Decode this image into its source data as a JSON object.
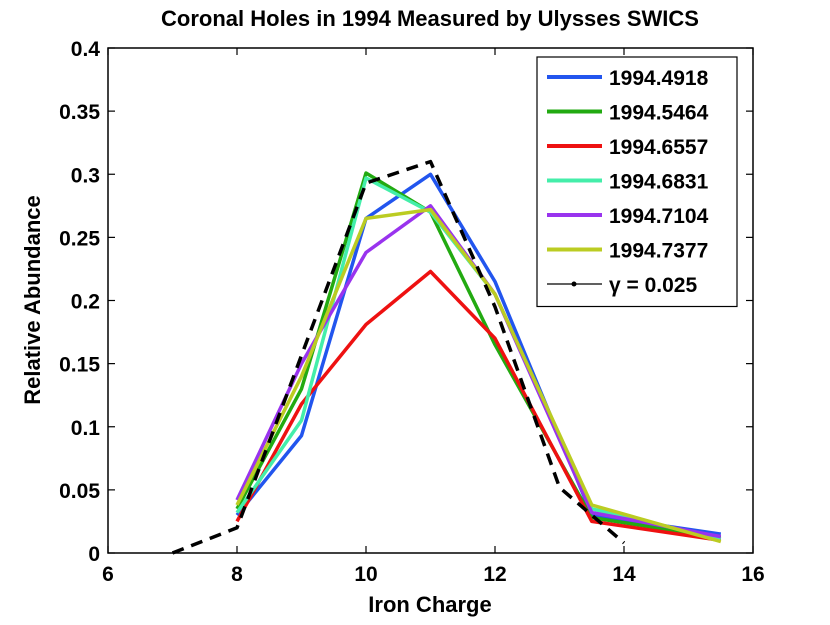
{
  "chart_data": {
    "type": "line",
    "title": "Coronal Holes in 1994 Measured by Ulysses SWICS",
    "xlabel": "Iron Charge",
    "ylabel": "Relative Abundance",
    "xlim": [
      6,
      16
    ],
    "ylim": [
      0,
      0.4
    ],
    "xticks": [
      6,
      8,
      10,
      12,
      14,
      16
    ],
    "xtick_labels": [
      "6",
      "8",
      "10",
      "12",
      "14",
      "16"
    ],
    "yticks": [
      0,
      0.05,
      0.1,
      0.15,
      0.2,
      0.25,
      0.3,
      0.35,
      0.4
    ],
    "ytick_labels": [
      "0",
      "0.05",
      "0.1",
      "0.15",
      "0.2",
      "0.25",
      "0.3",
      "0.35",
      "0.4"
    ],
    "grid": false,
    "legend_position": "top-right",
    "series": [
      {
        "name": "1994.4918",
        "color": "#2255ee",
        "style": "solid",
        "x": [
          8,
          9,
          10,
          11,
          12,
          13.5,
          15.5
        ],
        "y": [
          0.03,
          0.093,
          0.265,
          0.3,
          0.215,
          0.03,
          0.015
        ]
      },
      {
        "name": "1994.5464",
        "color": "#22aa11",
        "style": "solid",
        "x": [
          8,
          9,
          10,
          11,
          12,
          13.5,
          15.5
        ],
        "y": [
          0.035,
          0.13,
          0.301,
          0.27,
          0.165,
          0.028,
          0.012
        ]
      },
      {
        "name": "1994.6557",
        "color": "#ee1111",
        "style": "solid",
        "x": [
          8,
          9,
          10,
          11,
          12,
          13.5,
          15.5
        ],
        "y": [
          0.025,
          0.118,
          0.181,
          0.223,
          0.17,
          0.025,
          0.01
        ]
      },
      {
        "name": "1994.6831",
        "color": "#44eeaa",
        "style": "solid",
        "x": [
          8,
          9,
          10,
          11,
          12,
          13.5,
          15.5
        ],
        "y": [
          0.032,
          0.105,
          0.297,
          0.27,
          0.205,
          0.035,
          0.011
        ]
      },
      {
        "name": "1994.7104",
        "color": "#9933ee",
        "style": "solid",
        "x": [
          8,
          9,
          10,
          11,
          12,
          13.5,
          15.5
        ],
        "y": [
          0.042,
          0.15,
          0.238,
          0.275,
          0.205,
          0.032,
          0.013
        ]
      },
      {
        "name": "1994.7377",
        "color": "#bbcc22",
        "style": "solid",
        "x": [
          8,
          9,
          10,
          11,
          12,
          13.5,
          15.5
        ],
        "y": [
          0.038,
          0.14,
          0.265,
          0.272,
          0.205,
          0.038,
          0.009
        ]
      },
      {
        "name": "γ = 0.025",
        "color": "#000000",
        "style": "dashed",
        "x": [
          7,
          8,
          10,
          11,
          12,
          13,
          14
        ],
        "y": [
          0.0,
          0.02,
          0.293,
          0.31,
          0.195,
          0.052,
          0.008
        ]
      }
    ]
  }
}
